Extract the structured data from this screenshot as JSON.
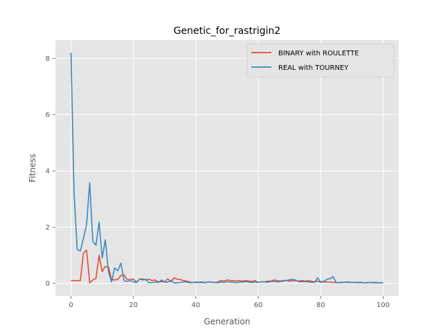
{
  "chart_data": {
    "type": "line",
    "title": "Genetic_for_rastrigin2",
    "xlabel": "Generation",
    "ylabel": "Fitness",
    "xlim": [
      -5,
      105
    ],
    "ylim": [
      -0.45,
      8.65
    ],
    "xticks": [
      0,
      20,
      40,
      60,
      80,
      100
    ],
    "yticks": [
      0,
      2,
      4,
      6,
      8
    ],
    "grid": true,
    "legend_position": "upper right",
    "series": [
      {
        "name": "BINARY with ROULETTE",
        "color": "#E24A33",
        "x": [
          0,
          1,
          2,
          3,
          4,
          5,
          6,
          7,
          8,
          9,
          10,
          11,
          12,
          13,
          14,
          15,
          16,
          17,
          18,
          19,
          20,
          21,
          22,
          23,
          24,
          25,
          26,
          27,
          28,
          29,
          30,
          31,
          32,
          33,
          34,
          35,
          36,
          37,
          38,
          39,
          40,
          41,
          42,
          43,
          44,
          45,
          46,
          47,
          48,
          49,
          50,
          51,
          52,
          53,
          54,
          55,
          56,
          57,
          58,
          59,
          60,
          61,
          62,
          63,
          64,
          65,
          66,
          67,
          68,
          69,
          70,
          71,
          72,
          73,
          74,
          75,
          76,
          77,
          78,
          79,
          80,
          81,
          82,
          83,
          84,
          85,
          86,
          87,
          88,
          89,
          90,
          91,
          92,
          93,
          94,
          95,
          96,
          97,
          98,
          99,
          100
        ],
        "y": [
          0.1,
          0.1,
          0.1,
          0.1,
          1.08,
          1.18,
          0.02,
          0.12,
          0.18,
          1.0,
          0.42,
          0.6,
          0.58,
          0.14,
          0.12,
          0.14,
          0.28,
          0.3,
          0.14,
          0.14,
          0.15,
          0.05,
          0.15,
          0.16,
          0.12,
          0.15,
          0.1,
          0.12,
          0.05,
          0.06,
          0.05,
          0.16,
          0.06,
          0.2,
          0.15,
          0.14,
          0.1,
          0.08,
          0.05,
          0.03,
          0.05,
          0.04,
          0.05,
          0.03,
          0.05,
          0.04,
          0.03,
          0.05,
          0.1,
          0.08,
          0.12,
          0.1,
          0.1,
          0.08,
          0.1,
          0.08,
          0.1,
          0.08,
          0.07,
          0.1,
          0.03,
          0.06,
          0.05,
          0.08,
          0.08,
          0.12,
          0.1,
          0.08,
          0.1,
          0.1,
          0.08,
          0.09,
          0.1,
          0.08,
          0.1,
          0.08,
          0.1,
          0.08,
          0.05,
          0.08,
          0.04,
          0.05,
          0.05,
          0.05,
          0.03,
          0.03,
          0.02,
          0.03,
          0.04,
          0.03,
          0.03,
          0.03,
          0.02,
          0.03,
          0.02,
          0.02,
          0.03,
          0.02,
          0.02,
          0.02,
          0.02
        ]
      },
      {
        "name": "REAL with TOURNEY",
        "color": "#348ABD",
        "x": [
          0,
          1,
          2,
          3,
          4,
          5,
          6,
          7,
          8,
          9,
          10,
          11,
          12,
          13,
          14,
          15,
          16,
          17,
          18,
          19,
          20,
          21,
          22,
          23,
          24,
          25,
          26,
          27,
          28,
          29,
          30,
          31,
          32,
          33,
          34,
          35,
          36,
          37,
          38,
          39,
          40,
          41,
          42,
          43,
          44,
          45,
          46,
          47,
          48,
          49,
          50,
          51,
          52,
          53,
          54,
          55,
          56,
          57,
          58,
          59,
          60,
          61,
          62,
          63,
          64,
          65,
          66,
          67,
          68,
          69,
          70,
          71,
          72,
          73,
          74,
          75,
          76,
          77,
          78,
          79,
          80,
          81,
          82,
          83,
          84,
          85,
          86,
          87,
          88,
          89,
          90,
          91,
          92,
          93,
          94,
          95,
          96,
          97,
          98,
          99,
          100
        ],
        "y": [
          8.2,
          3.2,
          1.2,
          1.15,
          1.6,
          2.1,
          3.58,
          1.5,
          1.35,
          2.18,
          0.9,
          1.55,
          0.42,
          0.05,
          0.55,
          0.45,
          0.72,
          0.1,
          0.07,
          0.1,
          0.05,
          0.03,
          0.15,
          0.12,
          0.15,
          0.02,
          0.03,
          0.05,
          0.03,
          0.12,
          0.05,
          0.04,
          0.1,
          0.02,
          0.02,
          0.03,
          0.05,
          0.05,
          0.02,
          0.03,
          0.03,
          0.03,
          0.03,
          0.02,
          0.05,
          0.04,
          0.03,
          0.02,
          0.05,
          0.03,
          0.06,
          0.04,
          0.04,
          0.02,
          0.04,
          0.05,
          0.06,
          0.05,
          0.03,
          0.05,
          0.03,
          0.06,
          0.05,
          0.04,
          0.06,
          0.07,
          0.05,
          0.06,
          0.08,
          0.1,
          0.13,
          0.14,
          0.12,
          0.06,
          0.06,
          0.06,
          0.05,
          0.04,
          0.03,
          0.2,
          0.05,
          0.07,
          0.14,
          0.17,
          0.24,
          0.02,
          0.03,
          0.04,
          0.04,
          0.05,
          0.03,
          0.04,
          0.03,
          0.04,
          0.02,
          0.03,
          0.03,
          0.03,
          0.03,
          0.02,
          0.03
        ]
      }
    ]
  }
}
